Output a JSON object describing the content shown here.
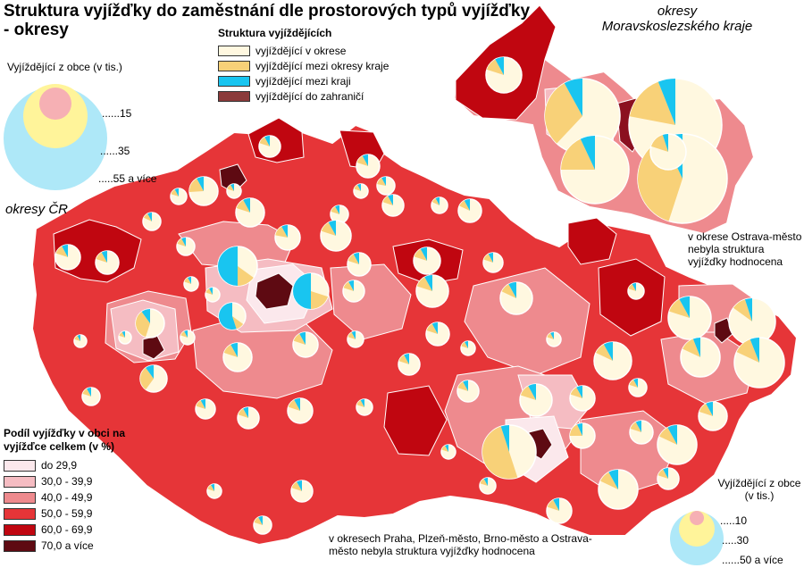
{
  "title": "Struktura vyjížďky do zaměstnání dle prostorových typů vyjížďky - okresy",
  "legend_categories": {
    "heading": "Struktura vyjíždějících",
    "items": [
      {
        "label": "vyjíždějící v okrese",
        "color": "#FFF8E0"
      },
      {
        "label": "vyjíždějící mezi okresy kraje",
        "color": "#F8D178"
      },
      {
        "label": "vyjíždějící mezi kraji",
        "color": "#19C5F0"
      },
      {
        "label": "vyjíždějící do zahraničí",
        "color": "#8B3A3A"
      }
    ]
  },
  "size_legend_cr": {
    "heading": "Vyjíždějící z obce (v tis.)",
    "labels": [
      "......15",
      "......35",
      ".....55 a více"
    ]
  },
  "size_legend_msk": {
    "heading": "Vyjíždějící z obce (v tis.)",
    "labels": [
      ".....10",
      ".....30",
      "......50 a více"
    ]
  },
  "label_cr": "okresy ČR",
  "label_msk": "okresy Moravskoslezského kraje",
  "note_ostrava": "v okrese Ostrava-město nebyla struktura vyjížďky hodnocena",
  "note_cities": "v okresech Praha, Plzeň-město, Brno-město a Ostrava-město nebyla struktura vyjížďky hodnocena",
  "legend_share": {
    "heading": "Podíl vyjížďky v obci na vyjížďce celkem (v %)",
    "items": [
      {
        "label": "do 29,9",
        "color": "#FBE8EC"
      },
      {
        "label": "30,0 - 39,9",
        "color": "#F5BCC2"
      },
      {
        "label": "40,0 - 49,9",
        "color": "#EE8A8E"
      },
      {
        "label": "50,0 - 59,9",
        "color": "#E63538"
      },
      {
        "label": "60,0 - 69,9",
        "color": "#C00610"
      },
      {
        "label": "70,0 a více",
        "color": "#5E0A12"
      }
    ]
  }
}
